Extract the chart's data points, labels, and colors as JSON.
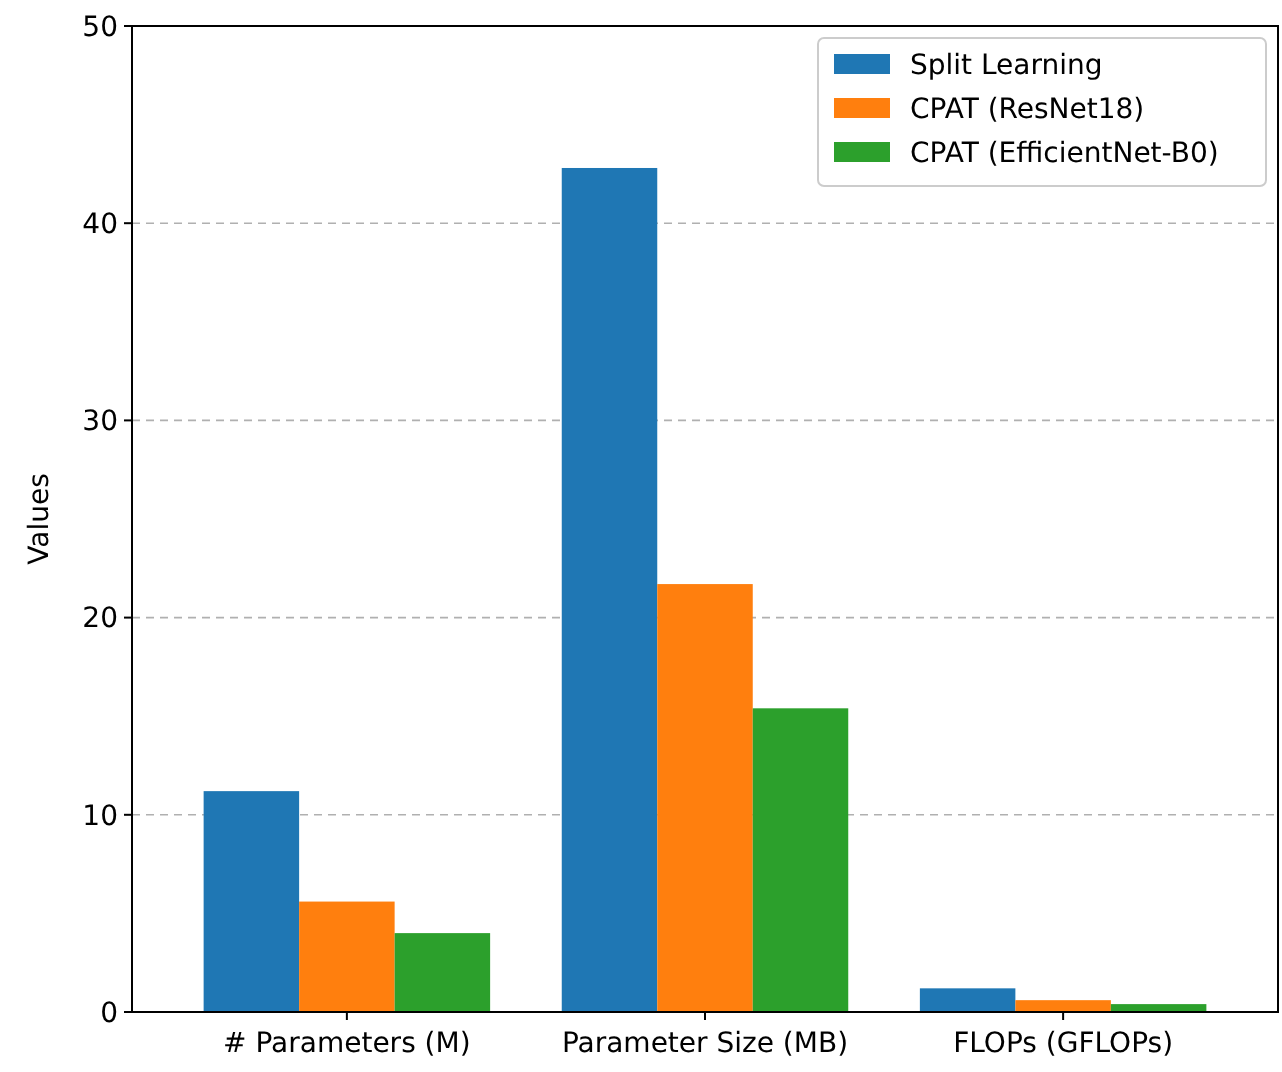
{
  "chart_data": {
    "type": "bar",
    "ylabel": "Values",
    "categories": [
      "# Parameters (M)",
      "Parameter Size (MB)",
      "FLOPs (GFLOPs)"
    ],
    "series": [
      {
        "name": "Split Learning",
        "color": "#1f77b4",
        "values": [
          11.2,
          42.8,
          1.2
        ]
      },
      {
        "name": "CPAT (ResNet18)",
        "color": "#ff7f0e",
        "values": [
          5.6,
          21.7,
          0.6
        ]
      },
      {
        "name": "CPAT (EfficientNet-B0)",
        "color": "#2ca02c",
        "values": [
          4.0,
          15.4,
          0.4
        ]
      }
    ],
    "ylim": [
      0,
      50
    ],
    "yticks": [
      0,
      10,
      20,
      30,
      40,
      50
    ],
    "grid": "y",
    "legend": "top right"
  }
}
